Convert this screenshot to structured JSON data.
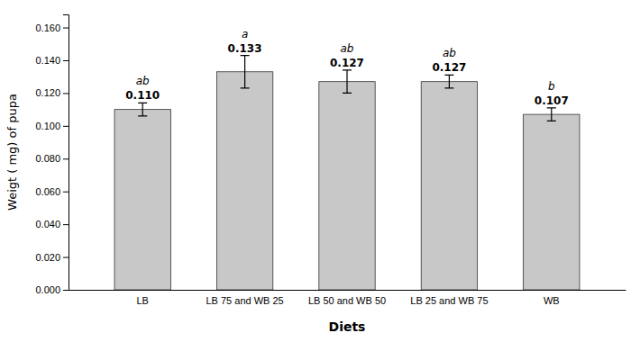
{
  "chart_data": {
    "type": "bar",
    "categories": [
      "LB",
      "LB 75 and WB 25",
      "LB 50 and WB 50",
      "LB 25 and WB 75",
      "WB"
    ],
    "values": [
      0.11,
      0.133,
      0.127,
      0.127,
      0.107
    ],
    "value_labels": [
      "0.110",
      "0.133",
      "0.127",
      "0.127",
      "0.107"
    ],
    "errors": [
      0.004,
      0.01,
      0.007,
      0.004,
      0.004
    ],
    "letters": [
      "ab",
      "a",
      "ab",
      "ab",
      "b"
    ],
    "xlabel": "Diets",
    "ylabel": "Weigt ( mg) of pupa",
    "color": "#c8c8c8",
    "data_labels": true,
    "grid": false,
    "ylim": [
      0,
      0.168
    ],
    "yticks": [
      {
        "value": 0,
        "label": "0.000"
      },
      {
        "value": 0.02,
        "label": "0.020"
      },
      {
        "value": 0.04,
        "label": "0.040"
      },
      {
        "value": 0.06,
        "label": "0.060"
      },
      {
        "value": 0.08,
        "label": "0.080"
      },
      {
        "value": 0.1,
        "label": "0.100"
      },
      {
        "value": 0.12,
        "label": "0.120"
      },
      {
        "value": 0.14,
        "label": "0.140"
      },
      {
        "value": 0.16,
        "label": "0.160"
      }
    ]
  }
}
